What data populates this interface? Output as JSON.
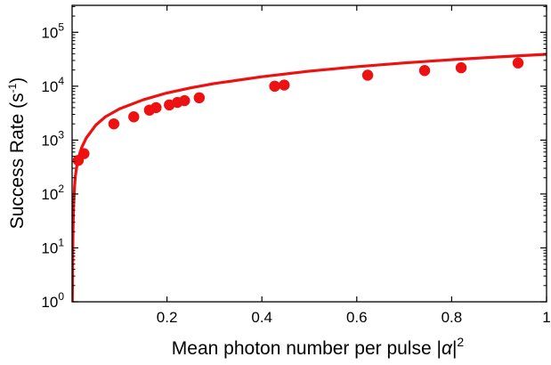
{
  "chart_data": {
    "type": "scatter",
    "title": "",
    "xlabel": "Mean photon number per pulse |α|²",
    "xlabel_parts": {
      "text": "Mean photon number per pulse |",
      "symbol": "α",
      "close": "|",
      "sup": "2"
    },
    "ylabel": "Success Rate (s⁻¹)",
    "ylabel_parts": {
      "text": "Success Rate (s",
      "sup": "-1",
      "close": ")"
    },
    "xlim": [
      0,
      1
    ],
    "ylim": [
      1,
      316228
    ],
    "yscale": "log",
    "grid": false,
    "x_ticks": [
      0.2,
      0.4,
      0.6,
      0.8,
      1.0
    ],
    "x_tick_labels": [
      "0.2",
      "0.4",
      "0.6",
      "0.8",
      "1"
    ],
    "y_ticks": [
      1,
      10,
      100,
      1000,
      10000,
      100000
    ],
    "y_tick_labels": [
      {
        "base": "10",
        "exp": "0"
      },
      {
        "base": "10",
        "exp": "1"
      },
      {
        "base": "10",
        "exp": "2"
      },
      {
        "base": "10",
        "exp": "3"
      },
      {
        "base": "10",
        "exp": "4"
      },
      {
        "base": "10",
        "exp": "5"
      }
    ],
    "color": "#ee1111",
    "series": [
      {
        "kind": "points",
        "x": [
          0.013,
          0.025,
          0.088,
          0.13,
          0.163,
          0.177,
          0.205,
          0.222,
          0.237,
          0.268,
          0.427,
          0.447,
          0.623,
          0.743,
          0.82,
          0.94
        ],
        "y": [
          420,
          560,
          2000,
          2700,
          3600,
          4000,
          4500,
          5000,
          5400,
          6100,
          10000,
          10500,
          16000,
          19500,
          22000,
          27000
        ]
      },
      {
        "kind": "line",
        "x": [
          0.0005,
          0.001,
          0.002,
          0.003,
          0.005,
          0.007,
          0.01,
          0.015,
          0.02,
          0.03,
          0.05,
          0.07,
          0.1,
          0.15,
          0.2,
          0.25,
          0.3,
          0.4,
          0.5,
          0.6,
          0.7,
          0.8,
          0.9,
          1.0
        ],
        "y": [
          1,
          4,
          22,
          55,
          130,
          220,
          330,
          520,
          720,
          1100,
          1900,
          2700,
          3800,
          5600,
          7500,
          9300,
          11200,
          15000,
          19000,
          23000,
          27000,
          31000,
          35000,
          39000
        ]
      }
    ]
  }
}
